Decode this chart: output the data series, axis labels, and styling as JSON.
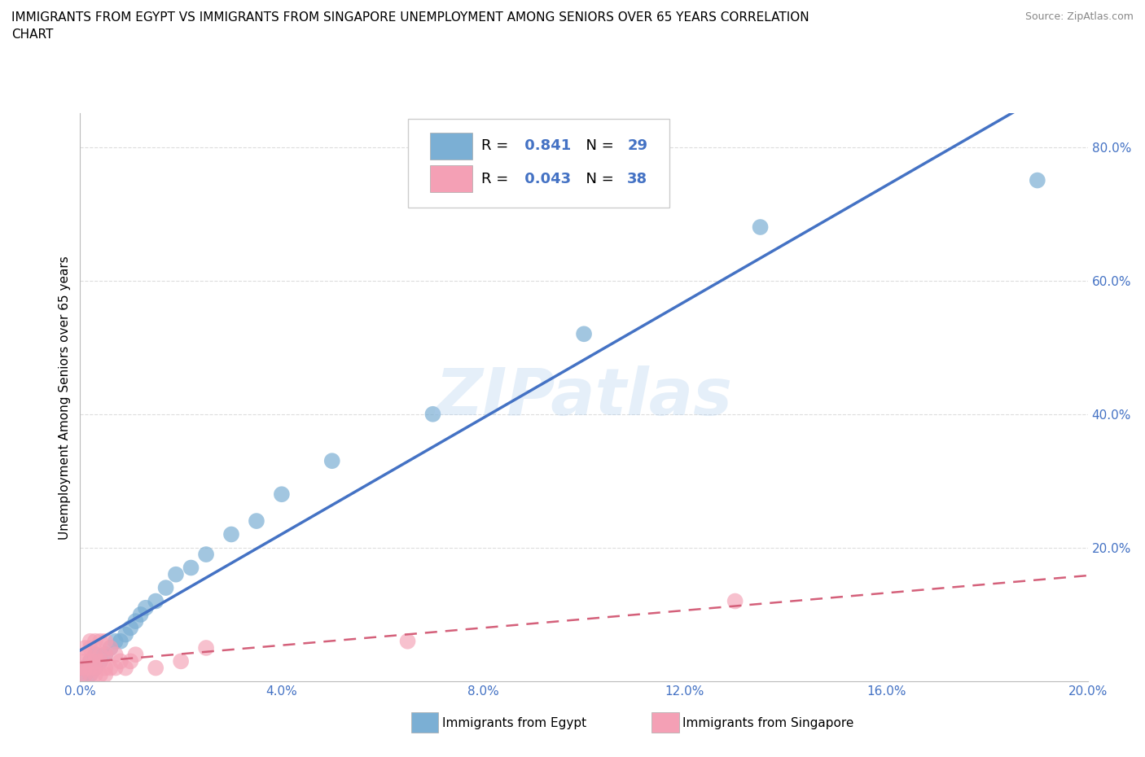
{
  "title_line1": "IMMIGRANTS FROM EGYPT VS IMMIGRANTS FROM SINGAPORE UNEMPLOYMENT AMONG SENIORS OVER 65 YEARS CORRELATION",
  "title_line2": "CHART",
  "source": "Source: ZipAtlas.com",
  "ylabel": "Unemployment Among Seniors over 65 years",
  "xlim": [
    0,
    0.2
  ],
  "ylim": [
    0,
    0.85
  ],
  "xticks": [
    0.0,
    0.04,
    0.08,
    0.12,
    0.16,
    0.2
  ],
  "yticks": [
    0.2,
    0.4,
    0.6,
    0.8
  ],
  "egypt_color": "#7bafd4",
  "singapore_color": "#f4a0b5",
  "egypt_line_color": "#4472c4",
  "singapore_line_color": "#d4607a",
  "egypt_R": 0.841,
  "egypt_N": 29,
  "singapore_R": 0.043,
  "singapore_N": 38,
  "watermark": "ZIPatlas",
  "egypt_x": [
    0.001,
    0.001,
    0.002,
    0.002,
    0.003,
    0.003,
    0.004,
    0.005,
    0.006,
    0.007,
    0.008,
    0.009,
    0.01,
    0.011,
    0.012,
    0.013,
    0.015,
    0.017,
    0.019,
    0.022,
    0.025,
    0.03,
    0.035,
    0.04,
    0.05,
    0.07,
    0.1,
    0.135,
    0.19
  ],
  "egypt_y": [
    0.01,
    0.02,
    0.01,
    0.03,
    0.02,
    0.04,
    0.03,
    0.04,
    0.05,
    0.06,
    0.06,
    0.07,
    0.08,
    0.09,
    0.1,
    0.11,
    0.12,
    0.14,
    0.16,
    0.17,
    0.19,
    0.22,
    0.24,
    0.28,
    0.33,
    0.4,
    0.52,
    0.68,
    0.75
  ],
  "singapore_x": [
    0.0,
    0.0,
    0.001,
    0.001,
    0.001,
    0.001,
    0.001,
    0.002,
    0.002,
    0.002,
    0.002,
    0.002,
    0.003,
    0.003,
    0.003,
    0.003,
    0.003,
    0.004,
    0.004,
    0.004,
    0.004,
    0.005,
    0.005,
    0.005,
    0.005,
    0.006,
    0.006,
    0.007,
    0.007,
    0.008,
    0.009,
    0.01,
    0.011,
    0.015,
    0.02,
    0.025,
    0.065,
    0.13
  ],
  "singapore_y": [
    0.01,
    0.02,
    0.01,
    0.02,
    0.03,
    0.04,
    0.05,
    0.01,
    0.02,
    0.03,
    0.05,
    0.06,
    0.01,
    0.02,
    0.03,
    0.04,
    0.06,
    0.01,
    0.03,
    0.04,
    0.06,
    0.01,
    0.02,
    0.04,
    0.06,
    0.02,
    0.05,
    0.02,
    0.04,
    0.03,
    0.02,
    0.03,
    0.04,
    0.02,
    0.03,
    0.05,
    0.06,
    0.12
  ],
  "background_color": "#ffffff",
  "grid_color": "#dddddd",
  "tick_color": "#4472c4"
}
